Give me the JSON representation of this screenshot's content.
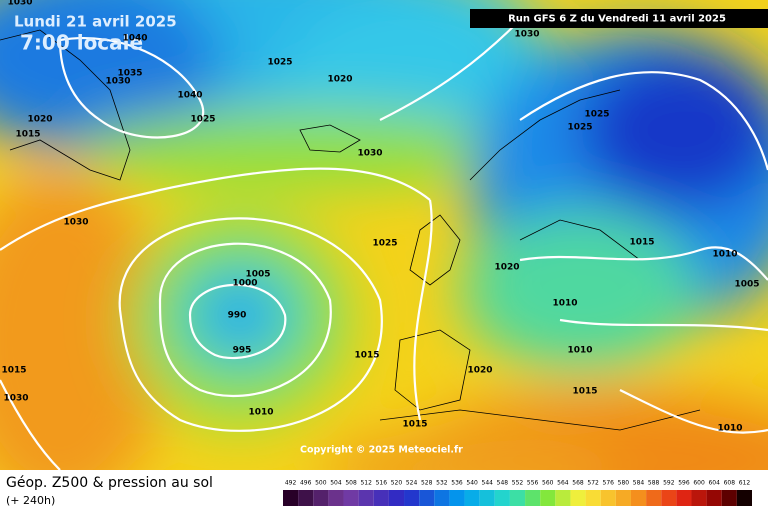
{
  "header": {
    "valid_date": "Lundi 21 avril 2025",
    "valid_time": "7:00 locale",
    "run": "Run GFS 6 Z du Vendredi 11 avril 2025"
  },
  "map": {
    "copyright": "Copyright © 2025 Meteociel.fr",
    "isobar_labels": [
      "1030",
      "1035",
      "1030",
      "1040",
      "1040",
      "1025",
      "1020",
      "1020",
      "1015",
      "1025",
      "1030",
      "1030",
      "1025",
      "1025",
      "1030",
      "1005",
      "1000",
      "990",
      "995",
      "1015",
      "1010",
      "1025",
      "1020",
      "1010",
      "1015",
      "1010",
      "1005",
      "1015",
      "1010",
      "1015",
      "1020",
      "1015",
      "1010",
      "1030"
    ]
  },
  "footer": {
    "title": "Géop. Z500 & pression au sol",
    "lead": "(+ 240h)",
    "scale": [
      492,
      496,
      500,
      504,
      508,
      512,
      516,
      520,
      524,
      528,
      532,
      536,
      540,
      544,
      548,
      552,
      556,
      560,
      564,
      568,
      572,
      576,
      580,
      584,
      588,
      592,
      596,
      600,
      604,
      608,
      612
    ]
  }
}
